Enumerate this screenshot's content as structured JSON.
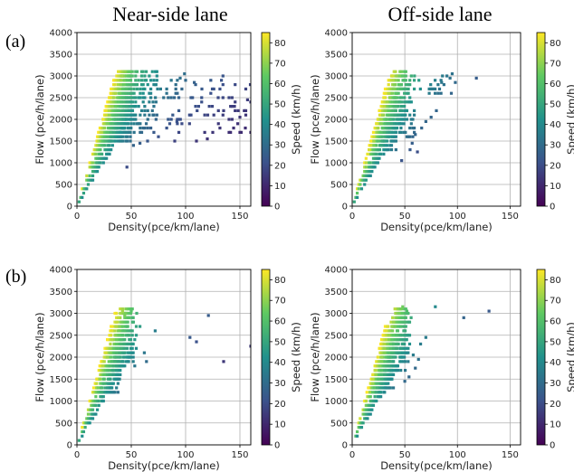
{
  "figure": {
    "column_titles": [
      "Near-side lane",
      "Off-side lane"
    ],
    "row_labels": [
      "(a)",
      "(b)"
    ]
  },
  "colormap": {
    "name": "viridis",
    "stops": [
      "#440154",
      "#3b528b",
      "#21918c",
      "#5ec962",
      "#fde725"
    ]
  },
  "chart_data": [
    {
      "type": "scatter",
      "row": "(a)",
      "column": "Near-side lane",
      "title": "Near-side lane",
      "xlabel": "Density(pce/km/lane)",
      "ylabel": "Flow (pce/h/lane)",
      "xlim": [
        0,
        160
      ],
      "ylim": [
        0,
        4000
      ],
      "xticks": [
        0,
        50,
        100,
        150
      ],
      "yticks": [
        0,
        500,
        1000,
        1500,
        2000,
        2500,
        3000,
        3500,
        4000
      ],
      "grid": true,
      "colorbar": {
        "label": "Speed (km/h)",
        "range": [
          0,
          85
        ],
        "ticks": [
          0,
          10,
          20,
          30,
          40,
          50,
          60,
          70,
          80
        ]
      },
      "clusters": [
        {
          "d_min": 17,
          "d_max": 50,
          "q_min": 1500,
          "q_max": 3100,
          "density_of_points": 0.7
        },
        {
          "d_min": 40,
          "d_max": 75,
          "q_min": 1700,
          "q_max": 3150,
          "density_of_points": 0.35
        },
        {
          "d_min": 70,
          "d_max": 160,
          "q_min": 1700,
          "q_max": 3050,
          "density_of_points": 0.08
        }
      ],
      "points": [
        [
          46,
          900
        ],
        [
          52,
          1400
        ],
        [
          58,
          1450
        ],
        [
          65,
          1500
        ],
        [
          75,
          1600
        ],
        [
          90,
          1500
        ],
        [
          110,
          1500
        ],
        [
          120,
          1550
        ],
        [
          125,
          1700
        ],
        [
          150,
          1700
        ],
        [
          155,
          1800
        ],
        [
          160,
          1700
        ],
        [
          150,
          2050
        ],
        [
          157,
          2450
        ],
        [
          160,
          2400
        ],
        [
          99,
          3050
        ],
        [
          95,
          2950
        ],
        [
          100,
          2900
        ],
        [
          108,
          2850
        ],
        [
          115,
          2700
        ],
        [
          130,
          2500
        ],
        [
          145,
          2300
        ],
        [
          92,
          1950
        ],
        [
          135,
          2200
        ],
        [
          140,
          2000
        ],
        [
          148,
          1900
        ]
      ]
    },
    {
      "type": "scatter",
      "row": "(a)",
      "column": "Off-side lane",
      "title": "Off-side lane",
      "xlabel": "Density(pce/km/lane)",
      "ylabel": "Flow (pce/h/lane)",
      "xlim": [
        0,
        160
      ],
      "ylim": [
        0,
        4000
      ],
      "xticks": [
        0,
        50,
        100,
        150
      ],
      "yticks": [
        0,
        500,
        1000,
        1500,
        2000,
        2500,
        3000,
        3500,
        4000
      ],
      "grid": true,
      "colorbar": {
        "label": "Speed (km/h)",
        "range": [
          0,
          85
        ],
        "ticks": [
          0,
          10,
          20,
          30,
          40,
          50,
          60,
          70,
          80
        ]
      },
      "clusters": [
        {
          "d_min": 15,
          "d_max": 42,
          "q_min": 1300,
          "q_max": 3000,
          "density_of_points": 0.6
        },
        {
          "d_min": 38,
          "d_max": 60,
          "q_min": 1600,
          "q_max": 3050,
          "density_of_points": 0.3
        },
        {
          "d_min": 55,
          "d_max": 95,
          "q_min": 2500,
          "q_max": 3050,
          "density_of_points": 0.12
        }
      ],
      "points": [
        [
          47,
          1050
        ],
        [
          55,
          1300
        ],
        [
          62,
          1250
        ],
        [
          57,
          1450
        ],
        [
          60,
          1650
        ],
        [
          66,
          1800
        ],
        [
          70,
          1950
        ],
        [
          75,
          2050
        ],
        [
          80,
          2200
        ],
        [
          90,
          3000
        ],
        [
          95,
          3050
        ],
        [
          93,
          2950
        ],
        [
          98,
          2850
        ],
        [
          118,
          2950
        ],
        [
          85,
          2850
        ]
      ]
    },
    {
      "type": "scatter",
      "row": "(b)",
      "column": "Near-side lane",
      "title": "Near-side lane",
      "xlabel": "Density(pce/km/lane)",
      "ylabel": "Flow (pce/h/lane)",
      "xlim": [
        0,
        160
      ],
      "ylim": [
        0,
        4000
      ],
      "xticks": [
        0,
        50,
        100,
        150
      ],
      "yticks": [
        0,
        500,
        1000,
        1500,
        2000,
        2500,
        3000,
        3500,
        4000
      ],
      "grid": true,
      "colorbar": {
        "label": "Speed (km/h)",
        "range": [
          0,
          85
        ],
        "ticks": [
          0,
          10,
          20,
          30,
          40,
          50,
          60,
          70,
          80
        ]
      },
      "clusters": [
        {
          "d_min": 14,
          "d_max": 40,
          "q_min": 1200,
          "q_max": 2700,
          "density_of_points": 0.55
        },
        {
          "d_min": 35,
          "d_max": 55,
          "q_min": 1800,
          "q_max": 3050,
          "density_of_points": 0.25
        }
      ],
      "points": [
        [
          38,
          2900
        ],
        [
          42,
          3050
        ],
        [
          44,
          2950
        ],
        [
          50,
          3050
        ],
        [
          55,
          3000
        ],
        [
          58,
          2700
        ],
        [
          52,
          2800
        ],
        [
          72,
          2600
        ],
        [
          64,
          1900
        ],
        [
          62,
          2100
        ],
        [
          104,
          2450
        ],
        [
          110,
          2350
        ],
        [
          121,
          2950
        ],
        [
          135,
          1900
        ],
        [
          160,
          2250
        ]
      ]
    },
    {
      "type": "scatter",
      "row": "(b)",
      "column": "Off-side lane",
      "title": "Off-side lane",
      "xlabel": "Density(pce/km/lane)",
      "ylabel": "Flow (pce/h/lane)",
      "xlim": [
        0,
        160
      ],
      "ylim": [
        0,
        4000
      ],
      "xticks": [
        0,
        50,
        100,
        150
      ],
      "yticks": [
        0,
        500,
        1000,
        1500,
        2000,
        2500,
        3000,
        3500,
        4000
      ],
      "grid": true,
      "colorbar": {
        "label": "Speed (km/h)",
        "range": [
          0,
          85
        ],
        "ticks": [
          0,
          10,
          20,
          30,
          40,
          50,
          60,
          70,
          80
        ]
      },
      "clusters": [
        {
          "d_min": 14,
          "d_max": 40,
          "q_min": 1200,
          "q_max": 2700,
          "density_of_points": 0.55
        },
        {
          "d_min": 35,
          "d_max": 55,
          "q_min": 1700,
          "q_max": 3100,
          "density_of_points": 0.3
        }
      ],
      "points": [
        [
          48,
          3150
        ],
        [
          52,
          3050
        ],
        [
          56,
          2900
        ],
        [
          50,
          1450
        ],
        [
          54,
          1550
        ],
        [
          60,
          1750
        ],
        [
          63,
          1950
        ],
        [
          58,
          2050
        ],
        [
          65,
          2300
        ],
        [
          70,
          2450
        ],
        [
          79,
          3150
        ],
        [
          106,
          2900
        ],
        [
          130,
          3050
        ]
      ]
    }
  ]
}
